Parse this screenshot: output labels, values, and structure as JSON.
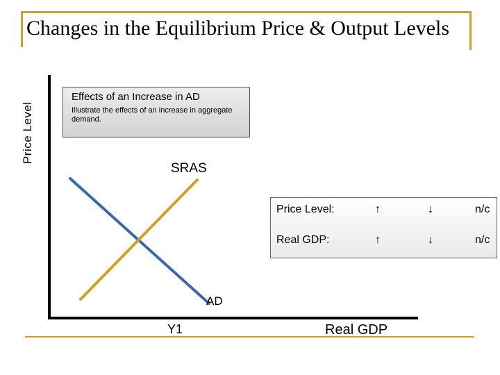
{
  "title": "Changes in the Equilibrium Price & Output Levels",
  "axes": {
    "y_label": "Price Level",
    "x_label": "Real GDP",
    "x_tick": "Y1"
  },
  "infobox": {
    "heading": "Effects of an Increase in AD",
    "text": "Illustrate the effects of an increase in aggregate demand."
  },
  "curves": {
    "sras_label": "SRAS",
    "ad_label": "AD",
    "sras_color": "#c9a227",
    "ad_color": "#3a67b0"
  },
  "results": {
    "rows": [
      {
        "label": "Price Level:",
        "up": "↑",
        "down": "↓",
        "nc": "n/c"
      },
      {
        "label": "Real GDP:",
        "up": "↑",
        "down": "↓",
        "nc": "n/c"
      }
    ]
  },
  "colors": {
    "accent_gold": "#c9a227",
    "axis": "#000000"
  }
}
